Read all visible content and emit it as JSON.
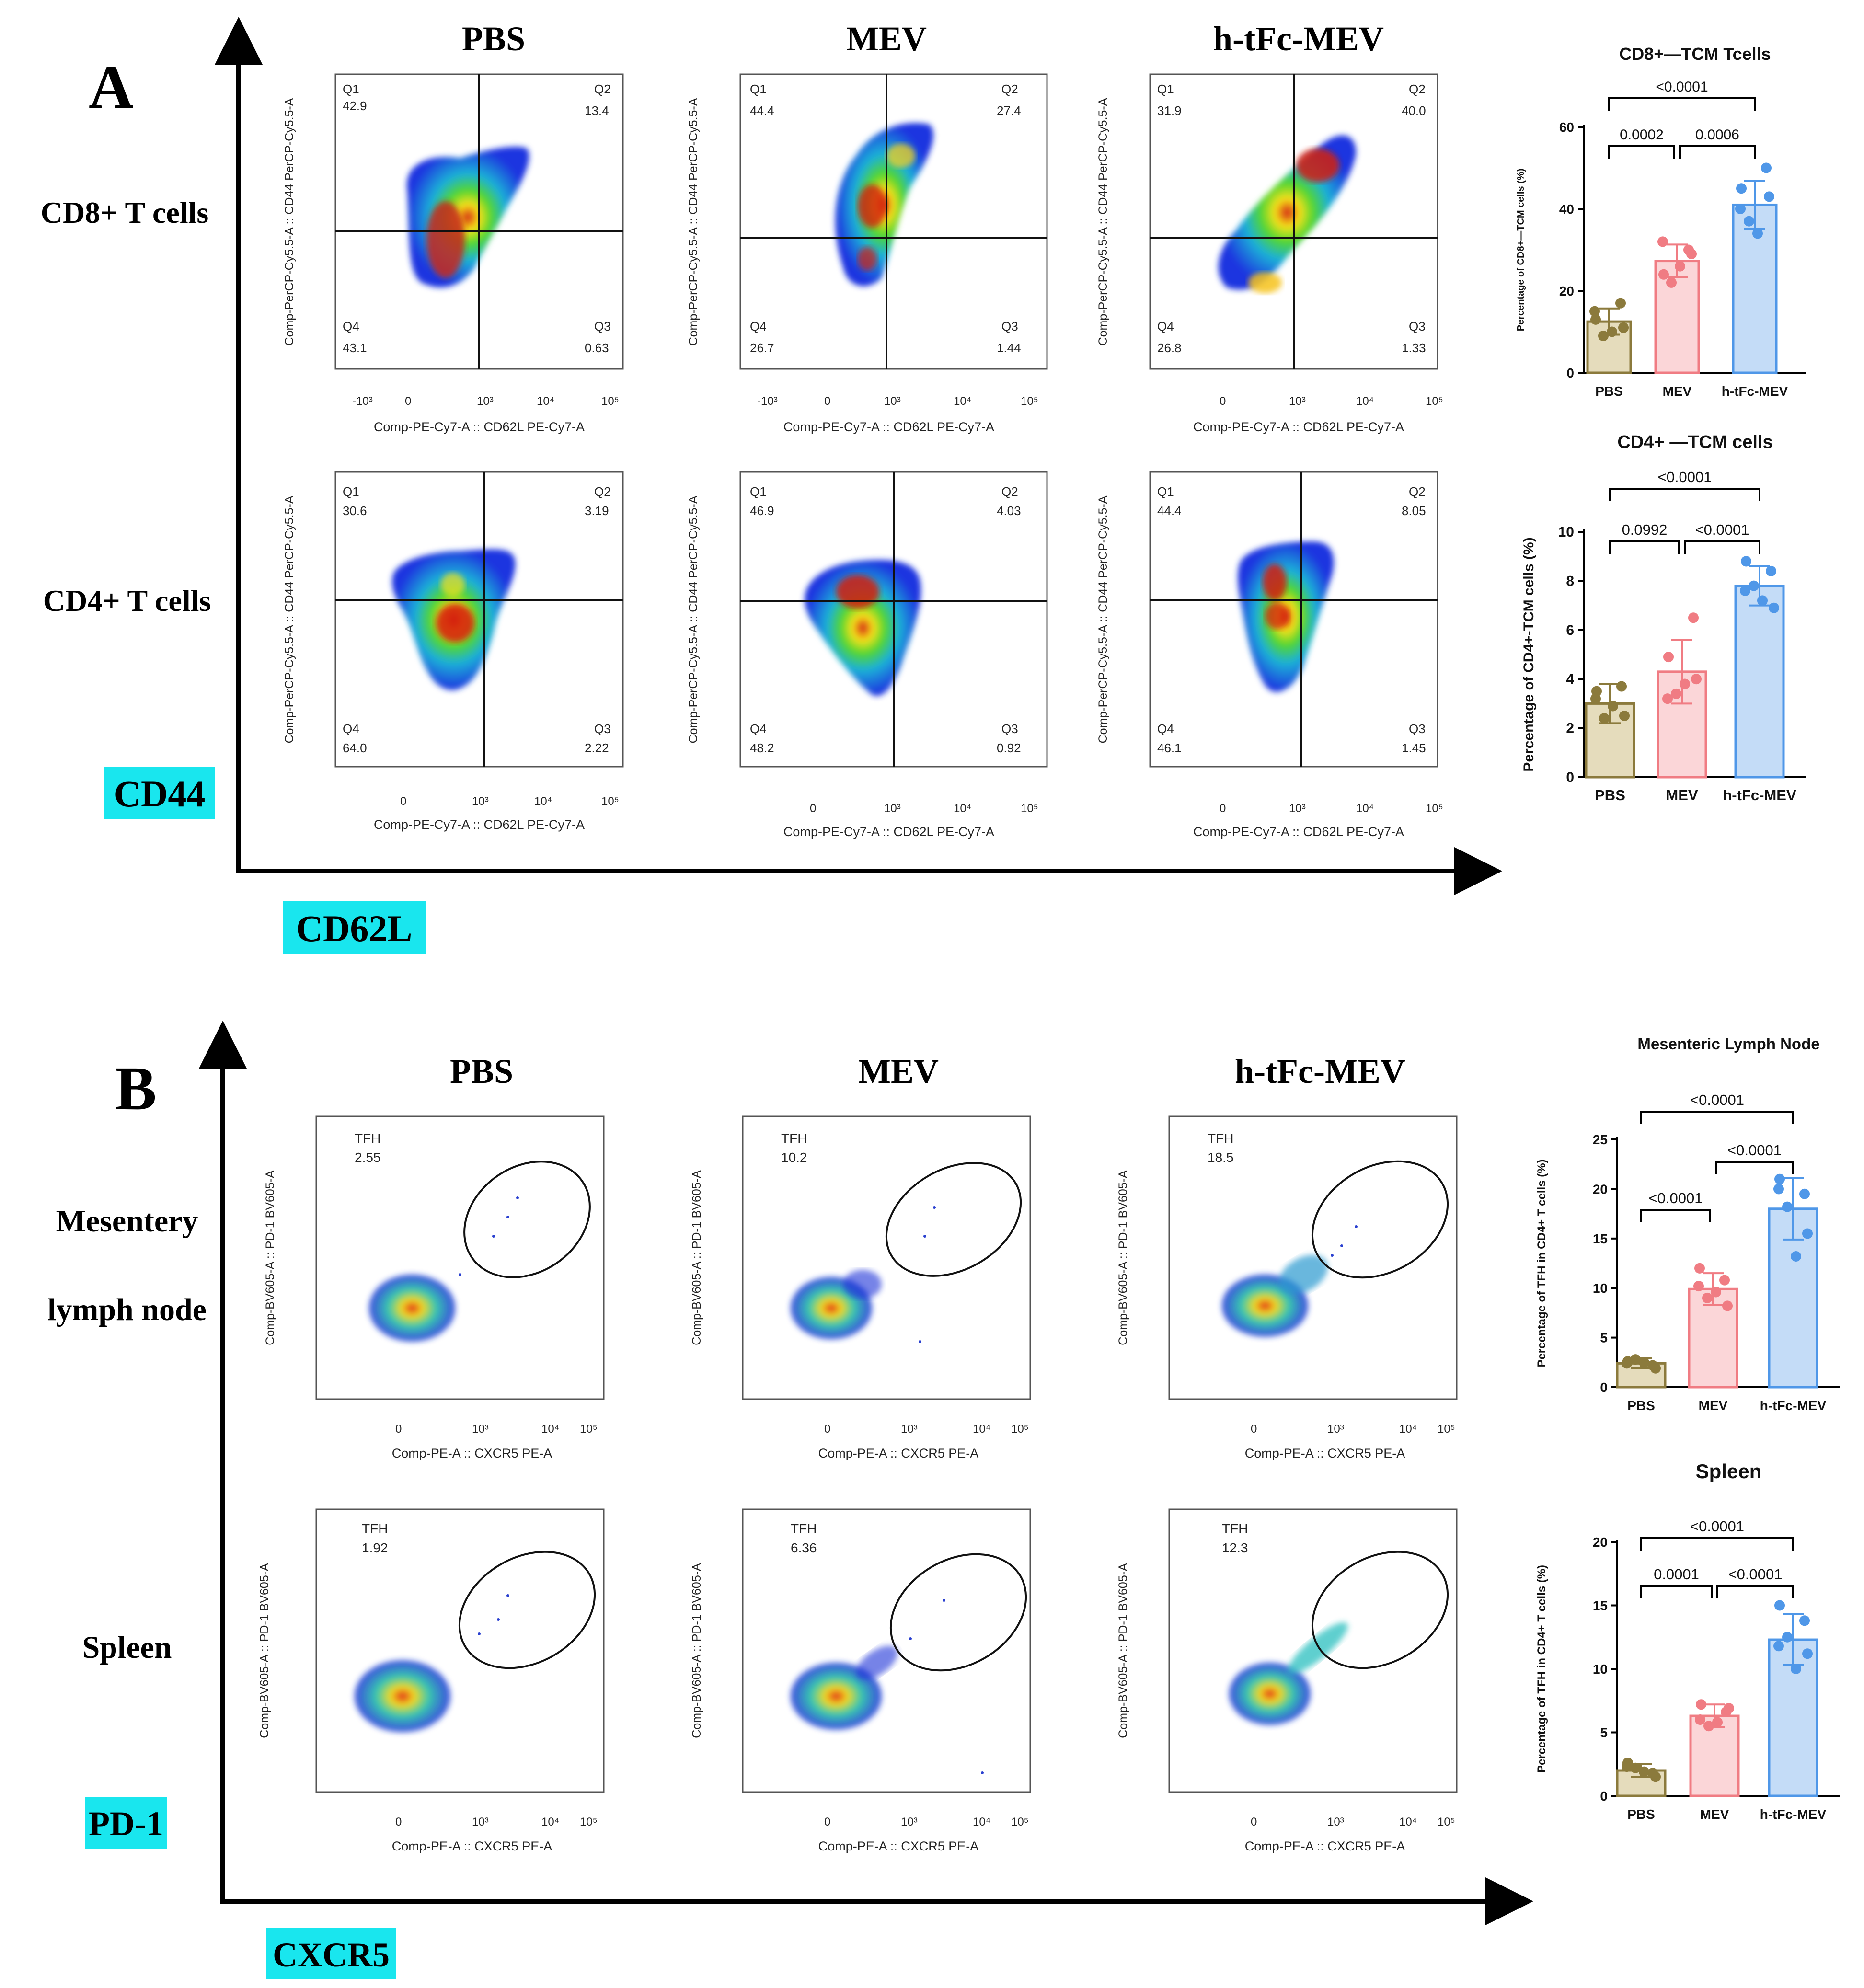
{
  "figure": {
    "panel_a_letter": "A",
    "panel_b_letter": "B",
    "group_labels": [
      "PBS",
      "MEV",
      "h-tFc-MEV"
    ],
    "panel_a": {
      "row_labels": [
        "CD8+ T cells",
        "CD4+ T cells"
      ],
      "y_marker_label": "CD44",
      "x_marker_label": "CD62L",
      "plot_x_label": "Comp-PE-Cy7-A :: CD62L PE-Cy7-A",
      "plot_y_label": "Comp-PerCP-Cy5.5-A :: CD44 PerCP-Cy5.5-A"
    },
    "panel_b": {
      "row_labels": [
        "Mesentery",
        "lymph node",
        "Spleen"
      ],
      "y_marker_label": "PD-1",
      "x_marker_label": "CXCR5",
      "plot_x_label": "Comp-PE-A :: CXCR5 PE-A",
      "plot_y_label": "Comp-BV605-A :: PD-1 BV605-A",
      "gate_label": "TFH"
    }
  },
  "flow_data": {
    "cd8": [
      {
        "group": "PBS",
        "q1": "42.9",
        "q2": "13.4",
        "q3": "0.63",
        "q4": "43.1"
      },
      {
        "group": "MEV",
        "q1": "44.4",
        "q2": "27.4",
        "q3": "1.44",
        "q4": "26.7"
      },
      {
        "group": "h-tFc-MEV",
        "q1": "31.9",
        "q2": "40.0",
        "q3": "1.33",
        "q4": "26.8"
      }
    ],
    "cd4": [
      {
        "group": "PBS",
        "q1": "30.6",
        "q2": "3.19",
        "q3": "2.22",
        "q4": "64.0"
      },
      {
        "group": "MEV",
        "q1": "46.9",
        "q2": "4.03",
        "q3": "0.92",
        "q4": "48.2"
      },
      {
        "group": "h-tFc-MEV",
        "q1": "44.4",
        "q2": "8.05",
        "q3": "1.45",
        "q4": "46.1"
      }
    ],
    "tfh_mln": [
      "2.55",
      "10.2",
      "18.5"
    ],
    "tfh_spleen": [
      "1.92",
      "6.36",
      "12.3"
    ]
  },
  "chart_data": [
    {
      "type": "bar",
      "title": "CD8+—TCM Tcells",
      "ylabel": "Percentage of CD8+—TCM cells (%)",
      "categories": [
        "PBS",
        "MEV",
        "h-tFc-MEV"
      ],
      "values": [
        12.5,
        27.3,
        41.0
      ],
      "errors": [
        3.2,
        4.0,
        5.9
      ],
      "points": [
        [
          13,
          17,
          9,
          11,
          10,
          15
        ],
        [
          24,
          30,
          22,
          29,
          26,
          32
        ],
        [
          45,
          50,
          37,
          43,
          34,
          40
        ]
      ],
      "ylim": [
        0,
        60
      ],
      "yticks": [
        0,
        20,
        40,
        60
      ],
      "comparisons": [
        {
          "a": 0,
          "b": 1,
          "label": "0.0002"
        },
        {
          "a": 1,
          "b": 2,
          "label": "0.0006"
        },
        {
          "a": 0,
          "b": 2,
          "label": "<0.0001"
        }
      ]
    },
    {
      "type": "bar",
      "title": "CD4+ —TCM cells",
      "ylabel": "Percentage of CD4+-TCM cells (%)",
      "categories": [
        "PBS",
        "MEV",
        "h-tFc-MEV"
      ],
      "values": [
        3.0,
        4.3,
        7.8
      ],
      "errors": [
        0.8,
        1.3,
        0.8
      ],
      "points": [
        [
          3.5,
          3.7,
          2.4,
          2.5,
          2.9,
          3.2
        ],
        [
          4.9,
          6.5,
          3.4,
          4.0,
          3.8,
          3.2
        ],
        [
          8.8,
          8.4,
          7.8,
          6.9,
          7.2,
          7.6
        ]
      ],
      "ylim": [
        0,
        10
      ],
      "yticks": [
        0,
        2,
        4,
        6,
        8,
        10
      ],
      "comparisons": [
        {
          "a": 0,
          "b": 1,
          "label": "0.0992"
        },
        {
          "a": 1,
          "b": 2,
          "label": "<0.0001"
        },
        {
          "a": 0,
          "b": 2,
          "label": "<0.0001"
        }
      ]
    },
    {
      "type": "bar",
      "title": "Mesenteric Lymph Node",
      "ylabel": "Percentage of TFH in CD4+ T cells  (%)",
      "categories": [
        "PBS",
        "MEV",
        "h-tFc-MEV"
      ],
      "values": [
        2.4,
        9.9,
        18.0
      ],
      "errors": [
        0.5,
        1.6,
        3.1
      ],
      "points": [
        [
          2.6,
          2.2,
          2.8,
          1.9,
          2.5,
          2.4
        ],
        [
          12.0,
          10.8,
          9.0,
          8.2,
          9.6,
          10.2
        ],
        [
          21.0,
          19.5,
          18.2,
          15.5,
          13.2,
          20.0
        ]
      ],
      "ylim": [
        0,
        25
      ],
      "yticks": [
        0,
        5,
        10,
        15,
        20,
        25
      ],
      "comparisons": [
        {
          "a": 0,
          "b": 1,
          "label": "<0.0001"
        },
        {
          "a": 1,
          "b": 2,
          "label": "<0.0001"
        },
        {
          "a": 0,
          "b": 2,
          "label": "<0.0001"
        }
      ]
    },
    {
      "type": "bar",
      "title": "Spleen",
      "ylabel": "Percentage of TFH in CD4+ T cells  (%)",
      "categories": [
        "PBS",
        "MEV",
        "h-tFc-MEV"
      ],
      "values": [
        2.0,
        6.3,
        12.3
      ],
      "errors": [
        0.5,
        0.9,
        2.0
      ],
      "points": [
        [
          2.6,
          1.8,
          2.2,
          1.5,
          1.9,
          2.3
        ],
        [
          7.2,
          6.6,
          5.5,
          6.9,
          5.8,
          6.0
        ],
        [
          15.0,
          13.8,
          12.5,
          11.2,
          10.0,
          11.8
        ]
      ],
      "ylim": [
        0,
        20
      ],
      "yticks": [
        0,
        5,
        10,
        15,
        20
      ],
      "comparisons": [
        {
          "a": 0,
          "b": 1,
          "label": "0.0001"
        },
        {
          "a": 1,
          "b": 2,
          "label": "<0.0001"
        },
        {
          "a": 0,
          "b": 2,
          "label": "<0.0001"
        }
      ]
    }
  ],
  "colors": {
    "PBS": "#8b7a3c",
    "PBS_fill": "#e5dcbc",
    "MEV": "#f07c83",
    "MEV_fill": "#fbd6d8",
    "HTFC": "#4f97e8",
    "HTFC_fill": "#c4dcf7",
    "highlight": "#19e6ee"
  }
}
